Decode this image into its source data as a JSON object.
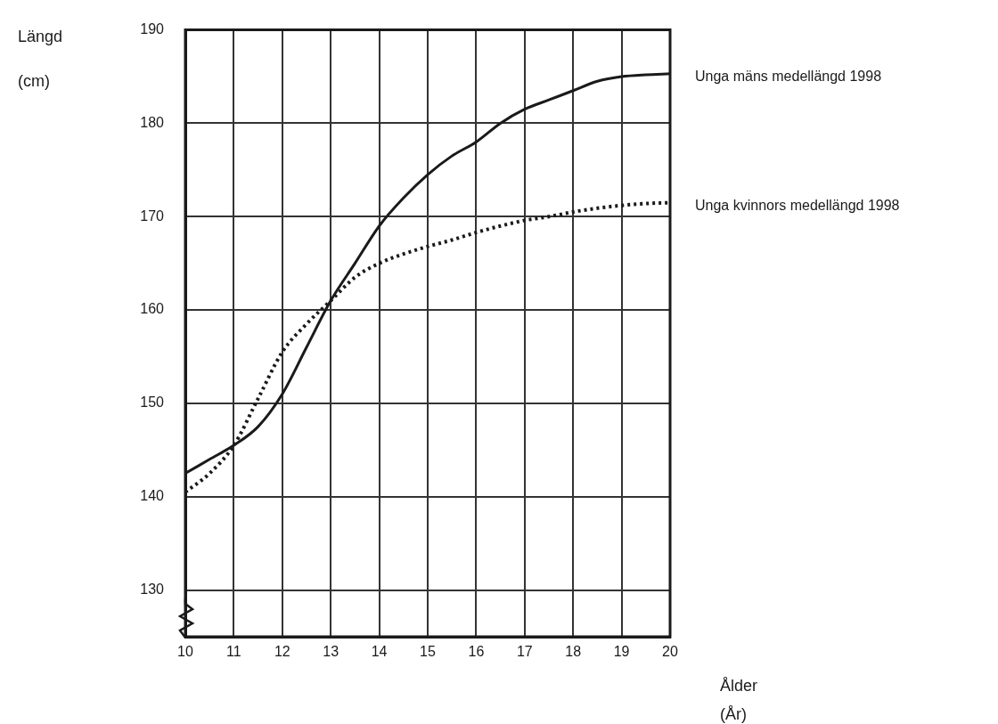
{
  "chart_data": {
    "type": "line",
    "xlabel": "Ålder\n(År)",
    "ylabel": "Längd\n(cm)",
    "xlim": [
      10,
      20
    ],
    "xticks": [
      10,
      11,
      12,
      13,
      14,
      15,
      16,
      17,
      18,
      19,
      20
    ],
    "ylim": [
      125,
      190
    ],
    "yticks": [
      130,
      140,
      150,
      160,
      170,
      180,
      190
    ],
    "grid": true,
    "legend": false,
    "marker": "none",
    "series": [
      {
        "name": "Unga mäns medellängd 1998",
        "color": "#1a1a1a",
        "line_style": "solid",
        "x": [
          10,
          10.5,
          11,
          11.5,
          12,
          12.5,
          13,
          13.5,
          14,
          14.5,
          15,
          15.5,
          16,
          16.5,
          17,
          17.5,
          18,
          18.5,
          19,
          19.5,
          20
        ],
        "values": [
          142.5,
          144,
          145.5,
          147.5,
          151,
          156,
          161,
          165,
          169,
          172,
          174.5,
          176.5,
          178,
          180,
          181.5,
          182.5,
          183.5,
          184.5,
          185,
          185.2,
          185.3
        ]
      },
      {
        "name": "Unga kvinnors medellängd 1998",
        "color": "#1a1a1a",
        "line_style": "dotted",
        "x": [
          10,
          10.5,
          11,
          11.5,
          12,
          12.5,
          13,
          13.5,
          14,
          14.5,
          15,
          15.5,
          16,
          16.5,
          17,
          17.5,
          18,
          18.5,
          19,
          19.5,
          20
        ],
        "values": [
          140.5,
          142.5,
          145.5,
          150.5,
          155.5,
          158.5,
          161,
          163.5,
          165,
          166,
          166.8,
          167.5,
          168.3,
          169,
          169.6,
          170,
          170.5,
          170.9,
          171.2,
          171.4,
          171.5
        ]
      }
    ]
  }
}
